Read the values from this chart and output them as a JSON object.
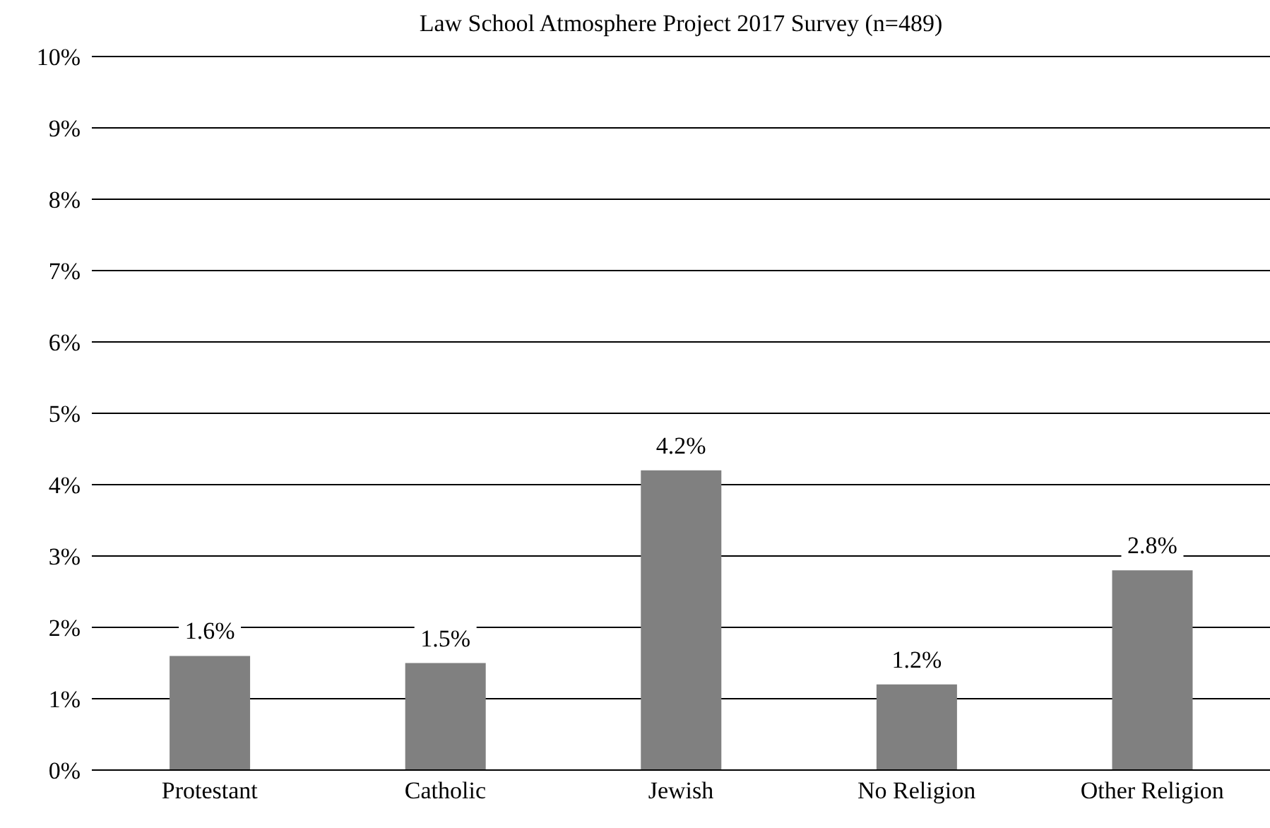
{
  "chart_data": {
    "type": "bar",
    "title": "Law School Atmosphere Project 2017 Survey (n=489)",
    "categories": [
      "Protestant",
      "Catholic",
      "Jewish",
      "No Religion",
      "Other Religion"
    ],
    "values": [
      1.6,
      1.5,
      4.2,
      1.2,
      2.8
    ],
    "value_labels": [
      "1.6%",
      "1.5%",
      "4.2%",
      "1.2%",
      "2.8%"
    ],
    "color": "#808080",
    "ylim": [
      0,
      10
    ],
    "yticks": [
      {
        "value": 0,
        "label": "0%"
      },
      {
        "value": 1,
        "label": "1%"
      },
      {
        "value": 2,
        "label": "2%"
      },
      {
        "value": 3,
        "label": "3%"
      },
      {
        "value": 4,
        "label": "4%"
      },
      {
        "value": 5,
        "label": "5%"
      },
      {
        "value": 6,
        "label": "6%"
      },
      {
        "value": 7,
        "label": "7%"
      },
      {
        "value": 8,
        "label": "8%"
      },
      {
        "value": 9,
        "label": "9%"
      },
      {
        "value": 10,
        "label": "10%"
      }
    ],
    "grid": "y",
    "legend": false
  }
}
